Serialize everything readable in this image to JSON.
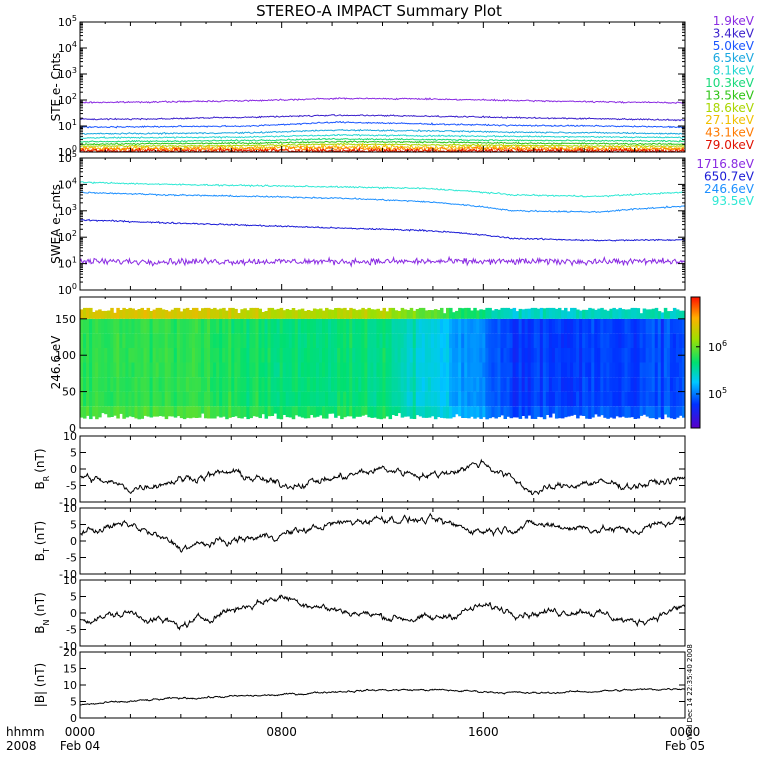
{
  "title": "STEREO-A IMPACT Summary Plot",
  "footer": {
    "time_label": "hhmm",
    "year_label": "2008",
    "ticks": [
      {
        "time": "0000",
        "date": "Feb 04"
      },
      {
        "time": "0800",
        "date": ""
      },
      {
        "time": "1600",
        "date": ""
      },
      {
        "time": "0000",
        "date": "Feb 05"
      }
    ]
  },
  "side_stamp": "Wed Dec 14 22:35:40 2008",
  "colors": {
    "axis": "#000000",
    "line": "#000000",
    "ste": [
      "#8a2be2",
      "#3a1fcc",
      "#1a56ff",
      "#1aa7e0",
      "#22d6d0",
      "#19d97a",
      "#2fc416",
      "#a9d600",
      "#f0c000",
      "#ff7a00",
      "#e01000"
    ],
    "swea": [
      "#8a2be2",
      "#1b1bd6",
      "#1e90ff",
      "#2ee8d4"
    ]
  },
  "chart_data": [
    {
      "type": "line",
      "panel": "ste",
      "ylabel": "STE e- Cnts",
      "yscale": "log",
      "ylim": [
        1,
        100000
      ],
      "ytick_labels": [
        "10^0",
        "10^1",
        "10^2",
        "10^3",
        "10^4",
        "10^5"
      ],
      "xlim_hours": [
        0,
        24
      ],
      "series": [
        {
          "name": "1.9keV",
          "values": [
            80,
            85,
            95,
            115,
            110,
            95,
            85,
            78
          ]
        },
        {
          "name": "3.4keV",
          "values": [
            18,
            19,
            22,
            26,
            24,
            21,
            19,
            17
          ]
        },
        {
          "name": "5.0keV",
          "values": [
            9,
            9.5,
            10,
            14,
            12,
            10.5,
            10,
            9
          ]
        },
        {
          "name": "6.5keV",
          "values": [
            5,
            5.2,
            5.5,
            7,
            6.5,
            5.8,
            5.5,
            5
          ]
        },
        {
          "name": "8.1keV",
          "values": [
            3.5,
            3.6,
            3.8,
            4.5,
            4.2,
            4,
            3.8,
            3.6
          ]
        },
        {
          "name": "10.3keV",
          "values": [
            2.5,
            2.6,
            2.8,
            3.2,
            3,
            2.8,
            2.7,
            2.6
          ]
        },
        {
          "name": "13.5keV",
          "values": [
            2,
            2.1,
            2.2,
            2.5,
            2.4,
            2.2,
            2.1,
            2
          ]
        },
        {
          "name": "18.6keV",
          "values": [
            1.7,
            1.7,
            1.8,
            2,
            1.9,
            1.8,
            1.7,
            1.7
          ]
        },
        {
          "name": "27.1keV",
          "values": [
            1.4,
            1.4,
            1.5,
            1.6,
            1.5,
            1.5,
            1.4,
            1.4
          ]
        },
        {
          "name": "43.1keV",
          "values": [
            1.25,
            1.25,
            1.3,
            1.3,
            1.3,
            1.3,
            1.25,
            1.25
          ]
        },
        {
          "name": "79.0keV",
          "values": [
            1.1,
            1.1,
            1.1,
            1.1,
            1.1,
            1.1,
            1.1,
            1.1
          ]
        }
      ]
    },
    {
      "type": "line",
      "panel": "swea",
      "ylabel": "SWEA e- cnts",
      "yscale": "log",
      "ylim": [
        1,
        100000
      ],
      "ytick_labels": [
        "10^0",
        "10^1",
        "10^2",
        "10^3",
        "10^4",
        "10^5"
      ],
      "xlim_hours": [
        0,
        24
      ],
      "series": [
        {
          "name": "1716.8eV",
          "values": [
            12,
            12,
            12,
            12,
            12,
            12,
            12,
            12
          ]
        },
        {
          "name": "650.7eV",
          "values": [
            450,
            350,
            280,
            220,
            180,
            90,
            75,
            80
          ]
        },
        {
          "name": "246.6eV",
          "values": [
            5000,
            4000,
            3500,
            3000,
            2200,
            1000,
            900,
            1500
          ]
        },
        {
          "name": "93.5eV",
          "values": [
            12000,
            10000,
            9000,
            8000,
            7000,
            4000,
            3500,
            5000
          ]
        }
      ]
    },
    {
      "type": "heatmap",
      "panel": "spectrogram",
      "ylabel": "246.6 eV",
      "ylim": [
        0,
        180
      ],
      "yticks": [
        0,
        50,
        100,
        150
      ],
      "x_hours": [
        0,
        4,
        8,
        12,
        14.5,
        17,
        20,
        24
      ],
      "level": [
        0.55,
        0.55,
        0.5,
        0.48,
        0.35,
        0.18,
        0.2,
        0.2
      ],
      "colorbar_ticks": [
        "10^5",
        "10^6"
      ]
    },
    {
      "type": "line",
      "panel": "br",
      "ylabel": "B_R (nT)",
      "ylim": [
        -10,
        10
      ],
      "yticks": [
        -10,
        -5,
        0,
        5,
        10
      ],
      "x_hours": [
        0,
        2,
        4,
        6,
        8,
        10,
        12,
        14,
        16,
        18,
        20,
        22,
        24
      ],
      "y": [
        -2,
        -6,
        -3,
        -1,
        -5,
        -3,
        0,
        -2,
        2,
        -7,
        -4,
        -5,
        -3
      ]
    },
    {
      "type": "line",
      "panel": "bt",
      "ylabel": "B_T (nT)",
      "ylim": [
        -10,
        10
      ],
      "yticks": [
        -10,
        -5,
        0,
        5,
        10
      ],
      "x_hours": [
        0,
        2,
        4,
        6,
        8,
        10,
        12,
        14,
        16,
        18,
        20,
        22,
        24
      ],
      "y": [
        3,
        5,
        -2,
        0,
        2,
        5,
        7,
        6,
        3,
        5,
        4,
        3,
        7
      ]
    },
    {
      "type": "line",
      "panel": "bn",
      "ylabel": "B_N (nT)",
      "ylim": [
        -10,
        10
      ],
      "yticks": [
        -10,
        -5,
        0,
        5,
        10
      ],
      "x_hours": [
        0,
        2,
        4,
        6,
        8,
        10,
        12,
        14,
        16,
        18,
        20,
        22,
        24
      ],
      "y": [
        -2,
        0,
        -4,
        1,
        5,
        1,
        -1,
        -2,
        2,
        0,
        1,
        -3,
        2
      ]
    },
    {
      "type": "line",
      "panel": "bmag",
      "ylabel": "|B| (nT)",
      "ylim": [
        0,
        20
      ],
      "yticks": [
        0,
        5,
        10,
        15,
        20
      ],
      "x_hours": [
        0,
        2,
        4,
        6,
        8,
        10,
        12,
        14,
        16,
        18,
        20,
        22,
        24
      ],
      "y": [
        4,
        5,
        6,
        6.5,
        7,
        8,
        8.5,
        8.5,
        8,
        7.5,
        8,
        8.5,
        9
      ]
    }
  ]
}
